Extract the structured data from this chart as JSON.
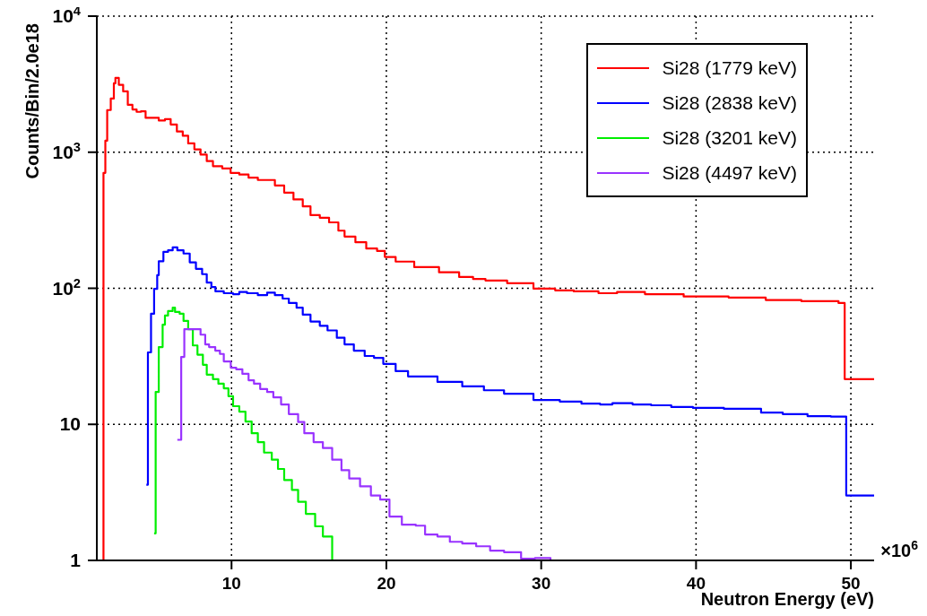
{
  "chart_data": {
    "type": "step",
    "xlabel": "Neutron Energy (eV)",
    "ylabel": "Counts/Bin/2.0e18",
    "annotations": [
      "×10$^{6}$"
    ],
    "xlim": [
      1.3,
      51.5
    ],
    "xticks": [
      10,
      20,
      30,
      40,
      50
    ],
    "ylim": [
      1,
      10000
    ],
    "yticks": [
      1,
      10,
      {
        "value": 100,
        "label": "10$^{2}$"
      },
      {
        "value": 1000,
        "label": "10$^{3}$"
      },
      {
        "value": 10000,
        "label": "10$^{4}$"
      }
    ],
    "log": "y",
    "grid": true,
    "legend": "top right",
    "series": [
      {
        "name": "Si28 (1779 keV)",
        "color": "#ff0000",
        "x": [
          1.5,
          1.73,
          1.85,
          1.97,
          2.2,
          2.4,
          2.5,
          2.72,
          3.0,
          3.3,
          3.6,
          3.87,
          4.15,
          4.45,
          4.9,
          5.3,
          5.7,
          6.07,
          6.47,
          6.85,
          7.2,
          7.6,
          8.0,
          8.4,
          8.8,
          9.4,
          9.94,
          10.5,
          11.1,
          11.7,
          12.8,
          13.4,
          14.0,
          14.6,
          15.1,
          15.7,
          16.3,
          16.9,
          17.3,
          18.0,
          18.7,
          19.4,
          19.9,
          20.6,
          21.8,
          23.4,
          24.7,
          25.6,
          26.4,
          27.8,
          29.5,
          30.9,
          32.1,
          33.7,
          34.9,
          36.7,
          39.2,
          42.1,
          44.5,
          46.8,
          49.2,
          49.6,
          51.5
        ],
        "values": [
          1,
          705,
          1215,
          2040,
          2480,
          3210,
          3520,
          3130,
          2800,
          2230,
          2060,
          1980,
          2000,
          1790,
          1790,
          1710,
          1750,
          1600,
          1420,
          1320,
          1160,
          1050,
          960,
          860,
          790,
          760,
          705,
          685,
          650,
          625,
          570,
          505,
          450,
          400,
          345,
          330,
          305,
          265,
          240,
          218,
          196,
          188,
          170,
          157,
          143,
          131,
          121,
          117,
          114,
          109,
          99.5,
          96.5,
          95,
          92,
          94,
          90.5,
          87,
          85.5,
          82,
          80.5,
          78,
          21.5,
          21.5
        ]
      },
      {
        "name": "Si28 (2838 keV)",
        "color": "#0000ff",
        "x": [
          4.5,
          4.6,
          4.8,
          5.0,
          5.2,
          5.3,
          5.6,
          5.9,
          6.2,
          6.5,
          6.9,
          7.3,
          7.7,
          8.1,
          8.4,
          8.7,
          8.96,
          9.5,
          10.1,
          10.5,
          11.0,
          11.7,
          12.3,
          12.8,
          13.3,
          13.7,
          14.2,
          14.6,
          15.1,
          15.7,
          16.2,
          16.8,
          17.3,
          17.9,
          18.6,
          19.2,
          19.8,
          20.6,
          21.4,
          23.3,
          24.9,
          26.3,
          27.6,
          29.5,
          31.2,
          32.6,
          33.8,
          34.6,
          35.9,
          37.1,
          38.4,
          39.8,
          41.8,
          44.2,
          45.6,
          47.2,
          48.7,
          49.7,
          51.5
        ],
        "values": [
          3.6,
          33.8,
          65,
          99,
          125,
          158,
          185,
          190,
          200,
          190,
          180,
          155,
          139,
          127,
          110,
          102,
          95,
          92,
          90.5,
          94,
          92,
          89,
          93,
          89,
          84,
          78,
          72,
          64,
          57,
          53,
          49,
          43.3,
          38.7,
          34.8,
          31.8,
          30.8,
          27.8,
          24.6,
          22.5,
          20.5,
          19,
          17.8,
          16.8,
          15.1,
          14.7,
          14.2,
          14,
          14.3,
          14,
          13.8,
          13.4,
          13.2,
          13,
          12.2,
          11.9,
          11.5,
          11.4,
          3,
          3
        ]
      },
      {
        "name": "Si28 (3201 keV)",
        "color": "#00ee00",
        "x": [
          5.0,
          5.1,
          5.3,
          5.55,
          5.7,
          5.9,
          6.2,
          6.35,
          6.65,
          6.9,
          7.2,
          7.5,
          7.8,
          8.15,
          8.4,
          8.8,
          9.15,
          9.5,
          9.8,
          10.1,
          10.5,
          10.9,
          11.3,
          11.7,
          12.1,
          12.6,
          13.0,
          13.4,
          13.9,
          14.3,
          14.8,
          15.4,
          15.9,
          16.5
        ],
        "values": [
          1.58,
          17.3,
          37,
          54,
          63,
          68,
          72,
          67,
          65,
          57.5,
          50,
          38,
          32.5,
          27.4,
          23.2,
          21.5,
          19.9,
          18.4,
          16.1,
          13.6,
          12.4,
          10.5,
          8.6,
          7.4,
          6.2,
          5.5,
          4.7,
          3.9,
          3.3,
          2.7,
          2.2,
          1.78,
          1.5,
          1
        ]
      },
      {
        "name": "Si28 (4497 keV)",
        "color": "#9933ff",
        "x": [
          6.5,
          6.75,
          6.95,
          8.0,
          8.3,
          8.55,
          8.95,
          9.25,
          9.5,
          9.95,
          10.3,
          10.7,
          11.1,
          11.45,
          11.85,
          12.3,
          12.7,
          13.2,
          13.7,
          14.3,
          14.7,
          15.3,
          15.9,
          16.5,
          17.1,
          17.6,
          18.3,
          19.0,
          19.6,
          20.2,
          21.0,
          21.9,
          22.5,
          23.3,
          24.1,
          24.9,
          25.8,
          26.7,
          27.6,
          28.7,
          29.6,
          30.6
        ],
        "values": [
          7.7,
          31.3,
          50,
          45.6,
          38.7,
          37,
          34.8,
          32.9,
          29,
          26.1,
          25.4,
          23.5,
          21.1,
          19.9,
          18.2,
          17.3,
          15.8,
          14,
          11.9,
          10.4,
          8.6,
          7.4,
          6.7,
          5.5,
          4.6,
          4,
          3.5,
          3,
          2.8,
          2.1,
          1.83,
          1.8,
          1.55,
          1.5,
          1.37,
          1.33,
          1.27,
          1.18,
          1.15,
          1.03,
          1.04,
          1
        ]
      }
    ]
  }
}
